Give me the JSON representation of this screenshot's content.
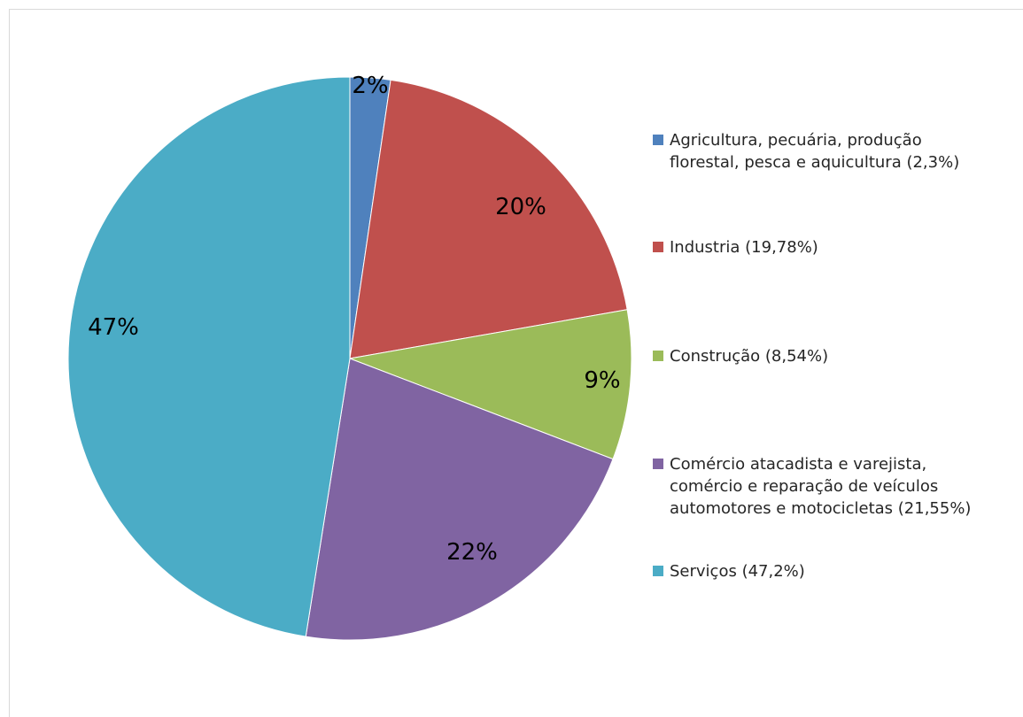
{
  "chart_data": {
    "type": "pie",
    "slices": [
      {
        "label": "2%",
        "value": 2.3,
        "legend": "Agricultura, pecuária, produção\nflorestal, pesca e aquicultura (2,3%)",
        "color": "#4F81BD"
      },
      {
        "label": "20%",
        "value": 19.78,
        "legend": "Industria (19,78%)",
        "color": "#C0504D"
      },
      {
        "label": "9%",
        "value": 8.54,
        "legend": "Construção (8,54%)",
        "color": "#9BBB59"
      },
      {
        "label": "22%",
        "value": 21.55,
        "legend": "Comércio atacadista e varejista,\ncomércio e reparação de veículos\nautomotores e motocicletas (21,55%)",
        "color": "#8064A2"
      },
      {
        "label": "47%",
        "value": 47.2,
        "legend": "Serviços (47,2%)",
        "color": "#4BACC6"
      }
    ],
    "legend_position": "right"
  }
}
